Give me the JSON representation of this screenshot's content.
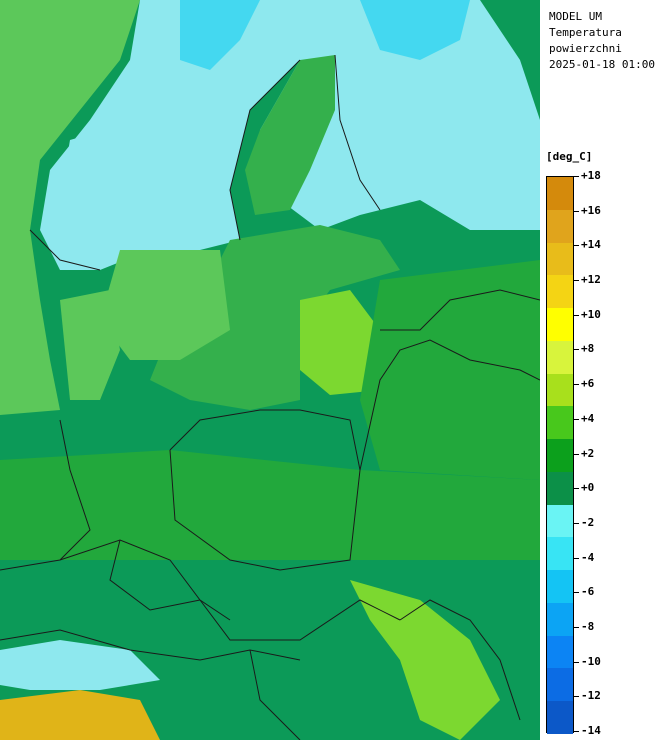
{
  "header": {
    "model": "MODEL UM",
    "field_line1": "Temperatura",
    "field_line2": "powierzchni",
    "datetime": "2025-01-18 01:00"
  },
  "legend": {
    "unit": "[deg_C]",
    "min": -14,
    "max": 18,
    "step": 2,
    "labels": [
      "+18",
      "+16",
      "+14",
      "+12",
      "+10",
      "+8",
      "+6",
      "+4",
      "+2",
      "+0",
      "-2",
      "-4",
      "-6",
      "-8",
      "-10",
      "-12",
      "-14"
    ],
    "colors": [
      "#d48a0c",
      "#e0a41c",
      "#e8bc1a",
      "#f4d414",
      "#ffff00",
      "#d8f43c",
      "#a8e01c",
      "#48c81c",
      "#0ca01c",
      "#0c9048",
      "#6af4f4",
      "#38e4f4",
      "#14c4f4",
      "#0ca4f4",
      "#0c84f4",
      "#0c6ce4",
      "#0c58c8"
    ]
  },
  "map": {
    "colors": {
      "sea_cool": "#5cc85a",
      "sea_warm": "#34b04c",
      "land_neg": "#8ee8ee",
      "land_cold": "#44d8f0",
      "land_mid": "#0c9a58",
      "land_green": "#22a83c",
      "land_warm": "#7cd830",
      "land_hot": "#e0b418",
      "border": "#1a1a1a"
    }
  }
}
